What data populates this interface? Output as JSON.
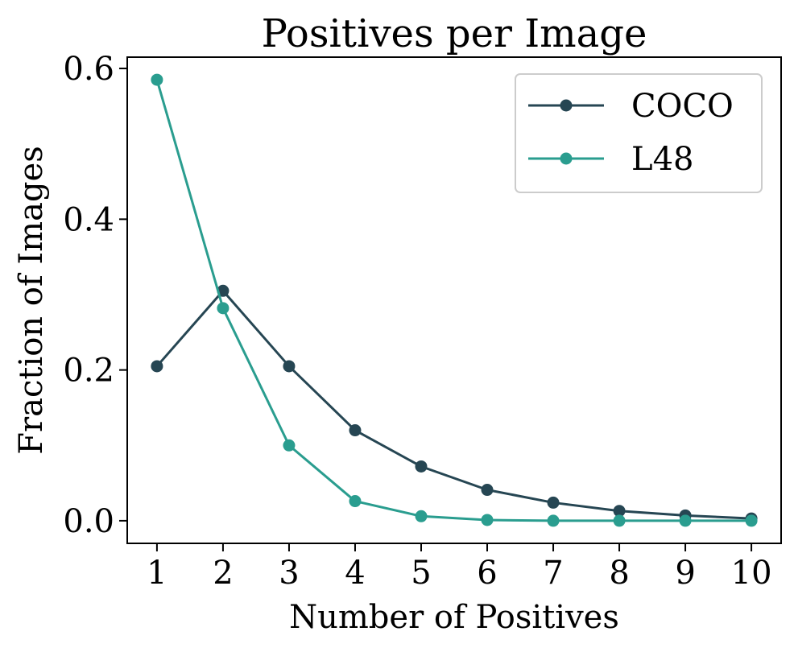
{
  "chart_data": {
    "type": "line",
    "title": "Positives per Image",
    "xlabel": "Number of Positives",
    "ylabel": "Fraction of Images",
    "x": [
      1,
      2,
      3,
      4,
      5,
      6,
      7,
      8,
      9,
      10
    ],
    "xticks": [
      "1",
      "2",
      "3",
      "4",
      "5",
      "6",
      "7",
      "8",
      "9",
      "10"
    ],
    "yticks": [
      {
        "value": 0.0,
        "label": "0.0"
      },
      {
        "value": 0.2,
        "label": "0.2"
      },
      {
        "value": 0.4,
        "label": "0.4"
      },
      {
        "value": 0.6,
        "label": "0.6"
      }
    ],
    "xlim": [
      0.55,
      10.45
    ],
    "ylim": [
      -0.03,
      0.615
    ],
    "grid": false,
    "legend_position": "top-right",
    "series": [
      {
        "name": "COCO",
        "color": "#264653",
        "marker": "circle",
        "values": [
          0.205,
          0.305,
          0.205,
          0.12,
          0.072,
          0.041,
          0.024,
          0.013,
          0.007,
          0.003
        ]
      },
      {
        "name": "L48",
        "color": "#2a9d8f",
        "marker": "circle",
        "values": [
          0.585,
          0.282,
          0.1,
          0.026,
          0.006,
          0.001,
          0.0,
          0.0,
          0.0,
          0.0
        ]
      }
    ]
  }
}
